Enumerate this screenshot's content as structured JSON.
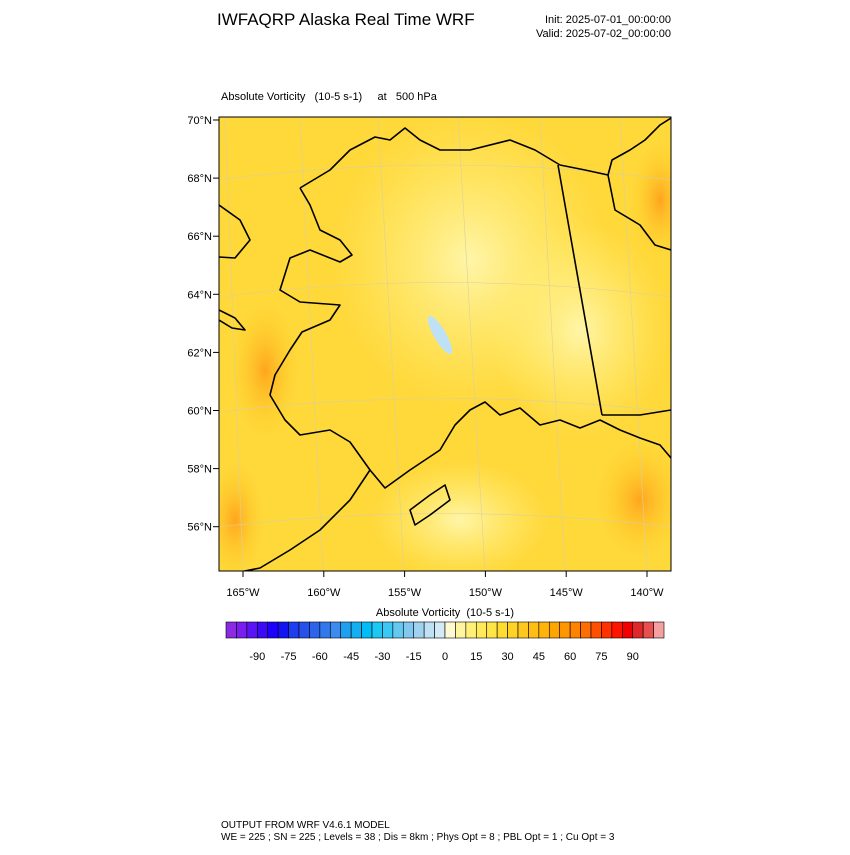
{
  "header": {
    "title": "IWFAQRP Alaska Real Time WRF",
    "init": "Init: 2025-07-01_00:00:00",
    "valid": "Valid: 2025-07-02_00:00:00"
  },
  "map": {
    "subtitle": "Absolute Vorticity   (10-5 s-1)     at   500 hPa",
    "lat_labels": [
      "70°N",
      "68°N",
      "66°N",
      "64°N",
      "62°N",
      "60°N",
      "58°N",
      "56°N"
    ],
    "lon_labels": [
      "165°W",
      "160°W",
      "155°W",
      "150°W",
      "145°W",
      "140°W"
    ]
  },
  "colorbar": {
    "title": "Absolute Vorticity  (10-5 s-1)",
    "colors": [
      "#8a2be2",
      "#7a1ef0",
      "#5a14f5",
      "#3c0af5",
      "#1e00ff",
      "#1414f0",
      "#1e3cf0",
      "#2850eb",
      "#2d64eb",
      "#3278eb",
      "#3c8cf0",
      "#1ea0f0",
      "#14aff0",
      "#00bef5",
      "#1ec8f5",
      "#3cc8f5",
      "#64c8f0",
      "#82c8ee",
      "#a0d2f0",
      "#bee1f5",
      "#d2ebf5",
      "#fffad2",
      "#fff5a0",
      "#fff078",
      "#ffeb5a",
      "#ffe646",
      "#ffdc32",
      "#ffd228",
      "#ffc81e",
      "#ffbe14",
      "#ffb40a",
      "#ffa500",
      "#ff9600",
      "#ff8200",
      "#ff6e00",
      "#ff5000",
      "#ff3200",
      "#ff1400",
      "#f00000",
      "#e02828",
      "#e85050",
      "#f5a0a0"
    ],
    "labels": [
      -90,
      -75,
      -60,
      -45,
      -30,
      -15,
      0,
      15,
      30,
      45,
      60,
      75,
      90
    ]
  },
  "footer": {
    "line1": "OUTPUT FROM WRF V4.6.1 MODEL",
    "line2": "WE = 225 ; SN = 225 ; Levels = 38 ; Dis = 8km ; Phys Opt = 8 ; PBL Opt = 1 ; Cu Opt = 3"
  }
}
